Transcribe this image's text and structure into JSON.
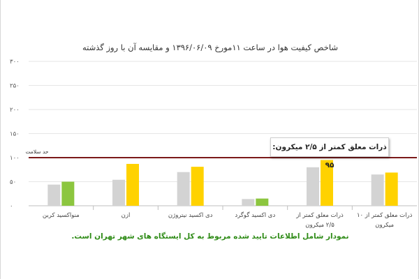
{
  "chart_data": {
    "type": "bar",
    "title": "شاخص کیفیت هوا در ساعت ۱۱مورخ ۱۳۹۶/۰۶/۰۹ و مقایسه آن با روز گذشته",
    "xlabel": "",
    "ylabel": "",
    "ylim": [
      0,
      300
    ],
    "yticks": [
      0,
      50,
      100,
      150,
      200,
      250,
      300
    ],
    "ytick_labels": [
      "۰",
      "۵۰",
      "۱۰۰",
      "۱۵۰",
      "۲۰۰",
      "۲۵۰",
      "۳۰۰"
    ],
    "grid": true,
    "categories": [
      [
        "ذرات معلق کمتر از ۱۰",
        "میکرون"
      ],
      [
        "ذرات معلق کمتر از",
        "۲/۵ میکرون"
      ],
      [
        "دی اکسید گوگرد"
      ],
      [
        "دی اکسید نیتروژن"
      ],
      [
        "ازن"
      ],
      [
        "منواکسید کربن"
      ]
    ],
    "series": [
      {
        "values": [
          65,
          80,
          14,
          70,
          54,
          44
        ]
      },
      {
        "values": [
          69,
          95,
          15,
          81,
          87,
          50
        ]
      }
    ],
    "bar_colors": [
      [
        "#d3d3d3",
        "#ffd200"
      ],
      [
        "#d3d3d3",
        "#ffd200"
      ],
      [
        "#d3d3d3",
        "#8cc63f"
      ],
      [
        "#d3d3d3",
        "#ffd200"
      ],
      [
        "#d3d3d3",
        "#ffd200"
      ],
      [
        "#d3d3d3",
        "#8cc63f"
      ]
    ],
    "reference_line": {
      "value": 100,
      "label": "حد سلامت",
      "color": "#7b1a1a"
    },
    "annotation": "ذرات معلق کمتر از ۲/۵ میکرون: ۹۵",
    "footnote": "نمودار شامل اطلاعات تایید شده مربوط به کل ایستگاه های شهر تهران است."
  }
}
